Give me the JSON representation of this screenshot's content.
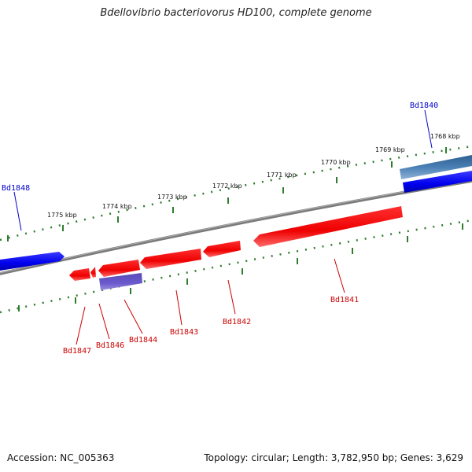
{
  "title": "Bdellovibrio bacteriovorus HD100, complete genome",
  "footer": {
    "accession": "Accession: NC_005363",
    "summary": "Topology: circular; Length: 3,782,950 bp; Genes: 3,629"
  },
  "colors": {
    "backbone": "#888888",
    "tick": "#2e7d2e",
    "forward_gene": "#0000ee",
    "forward_gene_light": "#4a7fb5",
    "reverse_gene": "#ee0000",
    "reverse_gene_light": "#6a5acd",
    "forward_label": "#0000cc",
    "reverse_label": "#cc0000"
  },
  "ticks": [
    {
      "label": "1768 kbp"
    },
    {
      "label": "1769 kbp"
    },
    {
      "label": "1770 kbp"
    },
    {
      "label": "1771 kbp"
    },
    {
      "label": "1772 kbp"
    },
    {
      "label": "1773 kbp"
    },
    {
      "label": "1774 kbp"
    },
    {
      "label": "1775 kbp"
    }
  ],
  "genes": [
    {
      "label": "Bd1840",
      "strand": "forward"
    },
    {
      "label": "Bd1848",
      "strand": "forward"
    },
    {
      "label": "Bd1841",
      "strand": "reverse"
    },
    {
      "label": "Bd1842",
      "strand": "reverse"
    },
    {
      "label": "Bd1843",
      "strand": "reverse"
    },
    {
      "label": "Bd1844",
      "strand": "reverse"
    },
    {
      "label": "Bd1846",
      "strand": "reverse"
    },
    {
      "label": "Bd1847",
      "strand": "reverse"
    }
  ]
}
